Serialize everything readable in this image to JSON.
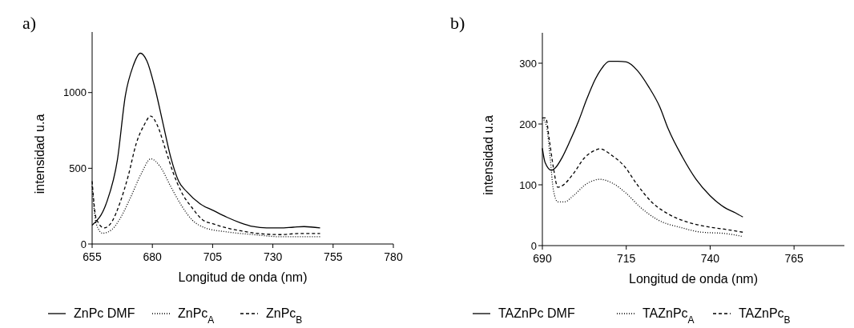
{
  "chart_data": [
    {
      "type": "line",
      "title": "a)",
      "xlabel": "Longitud de onda (nm)",
      "ylabel": "intensidad u.a",
      "xlim": [
        655,
        780
      ],
      "xticks": [
        655,
        680,
        705,
        730,
        755,
        780
      ],
      "ylim": [
        0,
        1400
      ],
      "yticks": [
        0,
        500,
        1000
      ],
      "legend": "bottom",
      "grid": false,
      "series": [
        {
          "name": "ZnPc DMF",
          "color": "#000000",
          "line_style": "solid",
          "x": [
            655,
            661,
            665.5,
            668.8,
            672,
            675,
            677.7,
            681,
            684.3,
            687.6,
            690.9,
            694.3,
            699.8,
            705.3,
            710.9,
            716.4,
            721.9,
            727.4,
            733,
            738.5,
            743,
            749.6
          ],
          "values": [
            124,
            274,
            557,
            981,
            1175,
            1260,
            1210,
            1034,
            804,
            574,
            415,
            345,
            265,
            221,
            177,
            141,
            115,
            106,
            106,
            111,
            115,
            106
          ]
        },
        {
          "name": "ZnPc$_{A}$",
          "color": "#000000",
          "line_style": "dotted",
          "x": [
            655,
            656.7,
            659.4,
            663.3,
            666.6,
            671,
            675.5,
            679.3,
            683.2,
            687.6,
            692,
            696.5,
            702,
            710.9,
            721.9,
            733,
            749.6
          ],
          "values": [
            380,
            133,
            71,
            97,
            168,
            309,
            468,
            562,
            512,
            380,
            256,
            159,
            106,
            80,
            62,
            48,
            48
          ]
        },
        {
          "name": "ZnPc$_{B}$",
          "color": "#000000",
          "line_style": "dashed",
          "x": [
            655,
            656.7,
            660,
            663.3,
            666.6,
            670,
            673.3,
            676.6,
            679.3,
            682,
            685.4,
            688.7,
            692,
            696.5,
            700.9,
            705.3,
            710.9,
            716.4,
            723,
            733,
            740.7,
            749.6
          ],
          "values": [
            415,
            168,
            106,
            150,
            274,
            451,
            663,
            786,
            845,
            786,
            627,
            468,
            345,
            239,
            159,
            133,
            106,
            88,
            71,
            62,
            69,
            69
          ]
        }
      ]
    },
    {
      "type": "line",
      "title": "b)",
      "xlabel": "Longitud de onda (nm)",
      "ylabel": "intensidad u.a",
      "xlim": [
        690,
        780
      ],
      "xticks": [
        690,
        715,
        740,
        765
      ],
      "ylim": [
        0,
        350
      ],
      "yticks": [
        0,
        100,
        200,
        300
      ],
      "legend": "bottom",
      "grid": false,
      "series": [
        {
          "name": "TAZnPc DMF",
          "color": "#000000",
          "line_style": "solid",
          "x": [
            690,
            690.8,
            692.75,
            694.2,
            695.8,
            698.3,
            700.8,
            703.3,
            705.8,
            707.5,
            710,
            712.5,
            715,
            718.3,
            721.7,
            725,
            727.5,
            731.7,
            735.8,
            740,
            744.2,
            747.5,
            749.75
          ],
          "values": [
            160,
            137,
            124,
            130,
            144,
            173,
            205,
            242,
            274,
            290,
            303,
            303,
            302,
            288,
            261,
            228,
            192,
            146,
            109,
            82,
            63,
            54,
            47
          ]
        },
        {
          "name": "TAZnPc$_{A}$",
          "color": "#000000",
          "line_style": "dotted",
          "x": [
            690,
            691.25,
            692.3,
            693.3,
            694.6,
            696.7,
            699.2,
            703.3,
            707.1,
            710.8,
            715,
            719.2,
            724.2,
            731.7,
            737.5,
            744.2,
            749.75
          ],
          "values": [
            210,
            196,
            146,
            91,
            72,
            72,
            82,
            102,
            109,
            103,
            86,
            63,
            43,
            29,
            22,
            20,
            15
          ]
        },
        {
          "name": "TAZnPc$_{B}$",
          "color": "#000000",
          "line_style": "dashed",
          "x": [
            690,
            691,
            692.1,
            693.3,
            694.6,
            695.8,
            699.2,
            702.5,
            705.8,
            707.1,
            710.8,
            714.2,
            718.3,
            722.5,
            727.5,
            732.5,
            739.2,
            744.2,
            749.75
          ],
          "values": [
            210,
            210,
            173,
            128,
            96,
            98,
            118,
            144,
            157,
            159,
            148,
            132,
            100,
            72,
            52,
            40,
            31,
            27,
            22
          ]
        }
      ]
    }
  ]
}
